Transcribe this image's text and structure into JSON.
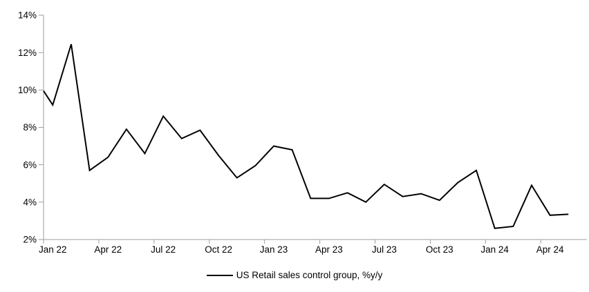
{
  "chart_data": {
    "type": "line",
    "title": "",
    "xlabel": "",
    "ylabel": "",
    "grid": false,
    "legend_position": "bottom-center",
    "ylim": [
      2,
      14
    ],
    "y_tick_step": 2,
    "y_tick_labels": [
      "2%",
      "4%",
      "6%",
      "8%",
      "10%",
      "12%",
      "14%"
    ],
    "x_tick_labels": [
      "Jan 22",
      "Apr 22",
      "Jul 22",
      "Oct 22",
      "Jan 23",
      "Apr 23",
      "Jul 23",
      "Oct 23",
      "Jan 24",
      "Apr 24"
    ],
    "x": [
      "Jan 22",
      "Feb 22",
      "Mar 22",
      "Apr 22",
      "May 22",
      "Jun 22",
      "Jul 22",
      "Aug 22",
      "Sep 22",
      "Oct 22",
      "Nov 22",
      "Dec 22",
      "Jan 23",
      "Feb 23",
      "Mar 23",
      "Apr 23",
      "May 23",
      "Jun 23",
      "Jul 23",
      "Aug 23",
      "Sep 23",
      "Oct 23",
      "Nov 23",
      "Dec 23",
      "Jan 24",
      "Feb 24",
      "Mar 24",
      "Apr 24",
      "May 24"
    ],
    "series": [
      {
        "name": "US Retail sales control group, %y/y",
        "color": "#000000",
        "values": [
          9.2,
          12.45,
          5.7,
          6.4,
          7.9,
          6.6,
          8.6,
          7.4,
          7.85,
          6.5,
          5.3,
          5.95,
          7.0,
          6.8,
          4.2,
          4.2,
          4.5,
          4.0,
          4.95,
          4.3,
          4.45,
          4.1,
          5.05,
          5.7,
          2.6,
          2.7,
          4.9,
          3.3,
          3.35
        ]
      }
    ],
    "edge_start_value": 9.95,
    "axis_color": "#9d9d9d",
    "line_width": 2
  }
}
